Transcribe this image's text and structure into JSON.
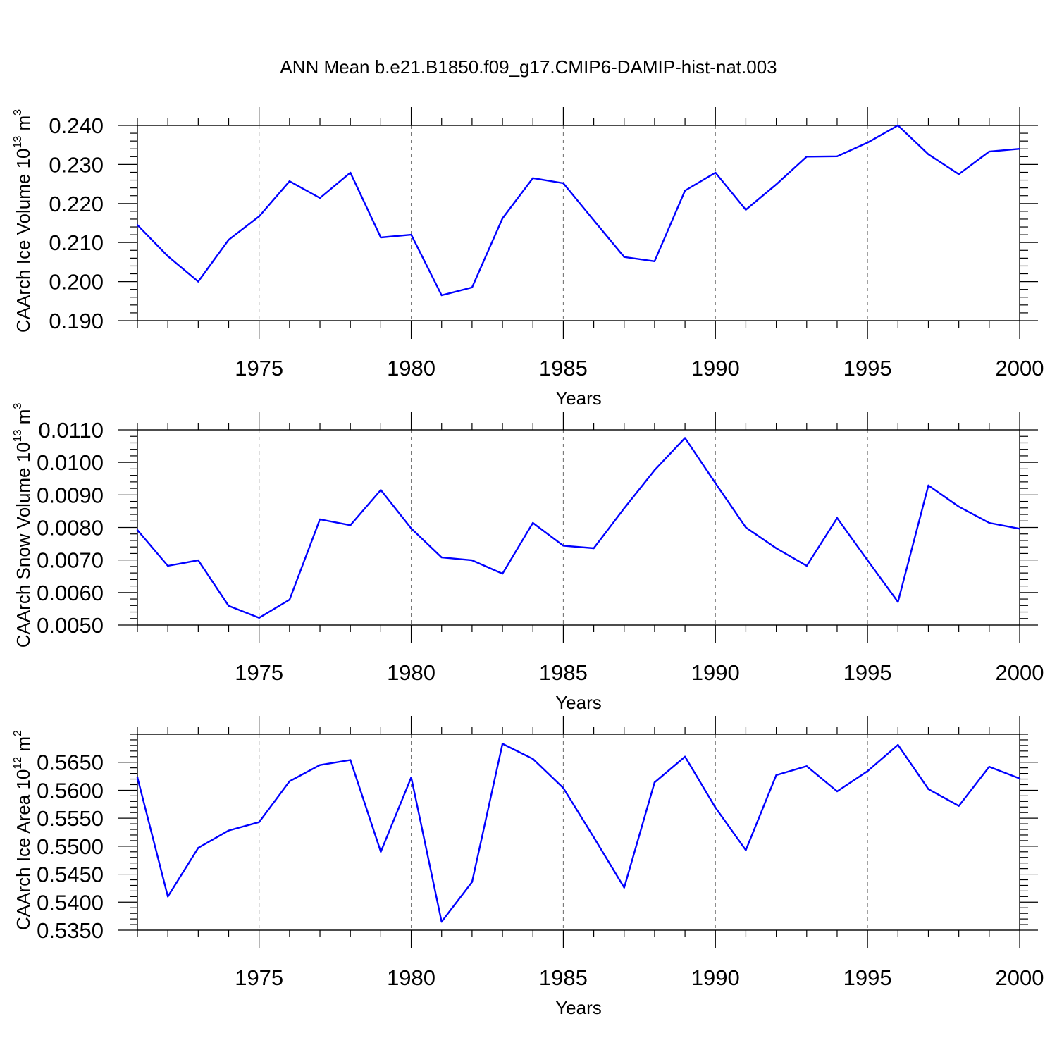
{
  "title": "ANN Mean b.e21.B1850.f09_g17.CMIP6-DAMIP-hist-nat.003",
  "colors": {
    "line": "#0000ff",
    "axis": "#000000",
    "grid": "#777777"
  },
  "chart_data": [
    {
      "type": "line",
      "ylabel_main": "CAArch Ice Volume 10",
      "ylabel_exp": "13",
      "ylabel_unit": "m",
      "ylabel_unit_exp": "3",
      "xlabel": "Years",
      "xlim": [
        1971,
        2000
      ],
      "ylim": [
        0.19,
        0.24
      ],
      "yticks": [
        0.19,
        0.2,
        0.21,
        0.22,
        0.23,
        0.24
      ],
      "ytick_labels": [
        "0.190",
        "0.200",
        "0.210",
        "0.220",
        "0.230",
        "0.240"
      ],
      "xticks": [
        1975,
        1980,
        1985,
        1990,
        1995,
        2000
      ],
      "xtick_labels": [
        "1975",
        "1980",
        "1985",
        "1990",
        "1995",
        "2000"
      ],
      "x": [
        1971,
        1972,
        1973,
        1974,
        1975,
        1976,
        1977,
        1978,
        1979,
        1980,
        1981,
        1982,
        1983,
        1984,
        1985,
        1986,
        1987,
        1988,
        1989,
        1990,
        1991,
        1992,
        1993,
        1994,
        1995,
        1996,
        1997,
        1998,
        1999,
        2000
      ],
      "y": [
        0.2145,
        0.2065,
        0.2,
        0.2107,
        0.2167,
        0.2257,
        0.2214,
        0.2279,
        0.2113,
        0.212,
        0.1965,
        0.1985,
        0.2162,
        0.2265,
        0.2252,
        0.2157,
        0.2063,
        0.2052,
        0.2233,
        0.2279,
        0.2184,
        0.2249,
        0.232,
        0.2321,
        0.2356,
        0.24,
        0.2326,
        0.2275,
        0.2333,
        0.234
      ]
    },
    {
      "type": "line",
      "ylabel_main": "CAArch Snow Volume 10",
      "ylabel_exp": "13",
      "ylabel_unit": "m",
      "ylabel_unit_exp": "3",
      "xlabel": "Years",
      "xlim": [
        1971,
        2000
      ],
      "ylim": [
        0.005,
        0.011
      ],
      "yticks": [
        0.005,
        0.006,
        0.007,
        0.008,
        0.009,
        0.01,
        0.011
      ],
      "ytick_labels": [
        "0.0050",
        "0.0060",
        "0.0070",
        "0.0080",
        "0.0090",
        "0.0100",
        "0.0110"
      ],
      "xticks": [
        1975,
        1980,
        1985,
        1990,
        1995,
        2000
      ],
      "xtick_labels": [
        "1975",
        "1980",
        "1985",
        "1990",
        "1995",
        "2000"
      ],
      "x": [
        1971,
        1972,
        1973,
        1974,
        1975,
        1976,
        1977,
        1978,
        1979,
        1980,
        1981,
        1982,
        1983,
        1984,
        1985,
        1986,
        1987,
        1988,
        1989,
        1990,
        1991,
        1992,
        1993,
        1994,
        1995,
        1996,
        1997,
        1998,
        1999,
        2000
      ],
      "y": [
        0.00792,
        0.00682,
        0.00699,
        0.00559,
        0.00522,
        0.00578,
        0.00825,
        0.00807,
        0.00915,
        0.00797,
        0.00708,
        0.00699,
        0.00658,
        0.00814,
        0.00744,
        0.00736,
        0.00859,
        0.00976,
        0.01075,
        0.00936,
        0.008,
        0.00736,
        0.00682,
        0.00829,
        0.00699,
        0.00571,
        0.00929,
        0.00864,
        0.00814,
        0.00796
      ]
    },
    {
      "type": "line",
      "ylabel_main": "CAArch Ice Area 10",
      "ylabel_exp": "12",
      "ylabel_unit": "m",
      "ylabel_unit_exp": "2",
      "xlabel": "Years",
      "xlim": [
        1971,
        2000
      ],
      "ylim": [
        0.535,
        0.57
      ],
      "yticks": [
        0.535,
        0.54,
        0.545,
        0.55,
        0.555,
        0.56,
        0.565
      ],
      "ytick_labels": [
        "0.5350",
        "0.5400",
        "0.5450",
        "0.5500",
        "0.5550",
        "0.5600",
        "0.5650"
      ],
      "xticks": [
        1975,
        1980,
        1985,
        1990,
        1995,
        2000
      ],
      "xtick_labels": [
        "1975",
        "1980",
        "1985",
        "1990",
        "1995",
        "2000"
      ],
      "x": [
        1971,
        1972,
        1973,
        1974,
        1975,
        1976,
        1977,
        1978,
        1979,
        1980,
        1981,
        1982,
        1983,
        1984,
        1985,
        1986,
        1987,
        1988,
        1989,
        1990,
        1991,
        1992,
        1993,
        1994,
        1995,
        1996,
        1997,
        1998,
        1999,
        2000
      ],
      "y": [
        0.5623,
        0.541,
        0.5497,
        0.5528,
        0.5543,
        0.5616,
        0.5645,
        0.5654,
        0.549,
        0.5623,
        0.5365,
        0.5436,
        0.5683,
        0.5656,
        0.5604,
        0.5516,
        0.5426,
        0.5614,
        0.566,
        0.5569,
        0.5493,
        0.5627,
        0.5643,
        0.5598,
        0.5634,
        0.5681,
        0.5602,
        0.5572,
        0.5642,
        0.5621
      ]
    }
  ]
}
